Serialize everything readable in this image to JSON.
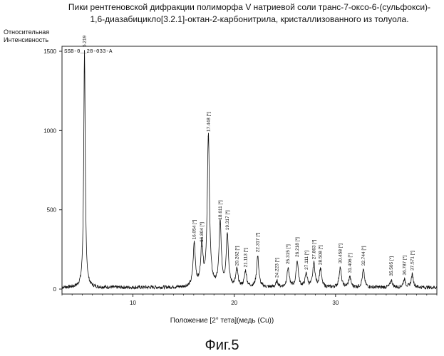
{
  "title_line1": "Пики рентгеновской дифракции полиморфа V натриевой соли транс-7-оксо-6-(сульфокси)-",
  "title_line2": "1,6-диазабицикло[3.2.1]-октан-2-карбонитрила, кристаллизованного из толуола.",
  "ylabel_line1": "Относительная",
  "ylabel_line2": "Интенсивность",
  "xlabel": "Положение [2° тета](медь (Cu))",
  "figure_caption": "Фиг.5",
  "chart_data": {
    "type": "line",
    "frame_label": "SSB-0__28-033-A",
    "xlim": [
      3,
      40
    ],
    "ylim": [
      0,
      1500
    ],
    "x_ticks": [
      10,
      20,
      30
    ],
    "y_ticks": [
      0,
      500,
      1000,
      1500
    ],
    "grid": false,
    "baseline": 10,
    "peaks": [
      {
        "x": 5.219,
        "y": 1500,
        "label": "5.219"
      },
      {
        "x": 16.054,
        "y": 285,
        "label": "16.054 [*]"
      },
      {
        "x": 16.804,
        "y": 270,
        "label": "16.804 [*]"
      },
      {
        "x": 17.448,
        "y": 965,
        "label": "17.448 [*]"
      },
      {
        "x": 18.611,
        "y": 410,
        "label": "18.611 [*]"
      },
      {
        "x": 19.317,
        "y": 345,
        "label": "19.317 [*]"
      },
      {
        "x": 20.262,
        "y": 120,
        "label": "20.262 [*]"
      },
      {
        "x": 21.113,
        "y": 110,
        "label": "21.113 [*]"
      },
      {
        "x": 22.317,
        "y": 205,
        "label": "22.317 [*]"
      },
      {
        "x": 24.223,
        "y": 45,
        "label": "24.223 [*]"
      },
      {
        "x": 25.315,
        "y": 130,
        "label": "25.315 [*]"
      },
      {
        "x": 26.218,
        "y": 175,
        "label": "26.218 [*]"
      },
      {
        "x": 27.111,
        "y": 95,
        "label": "27.111 [*]"
      },
      {
        "x": 27.863,
        "y": 160,
        "label": "27.863 [*]"
      },
      {
        "x": 28.508,
        "y": 125,
        "label": "28.508 [*]"
      },
      {
        "x": 30.458,
        "y": 135,
        "label": "30.458 [*]"
      },
      {
        "x": 31.406,
        "y": 75,
        "label": "31.406 [*]"
      },
      {
        "x": 32.744,
        "y": 120,
        "label": "32.744 [*]"
      },
      {
        "x": 35.505,
        "y": 55,
        "label": "35.505 [*]"
      },
      {
        "x": 36.787,
        "y": 60,
        "label": "36.787 [*]"
      },
      {
        "x": 37.571,
        "y": 90,
        "label": "37.571 [*]"
      }
    ]
  }
}
